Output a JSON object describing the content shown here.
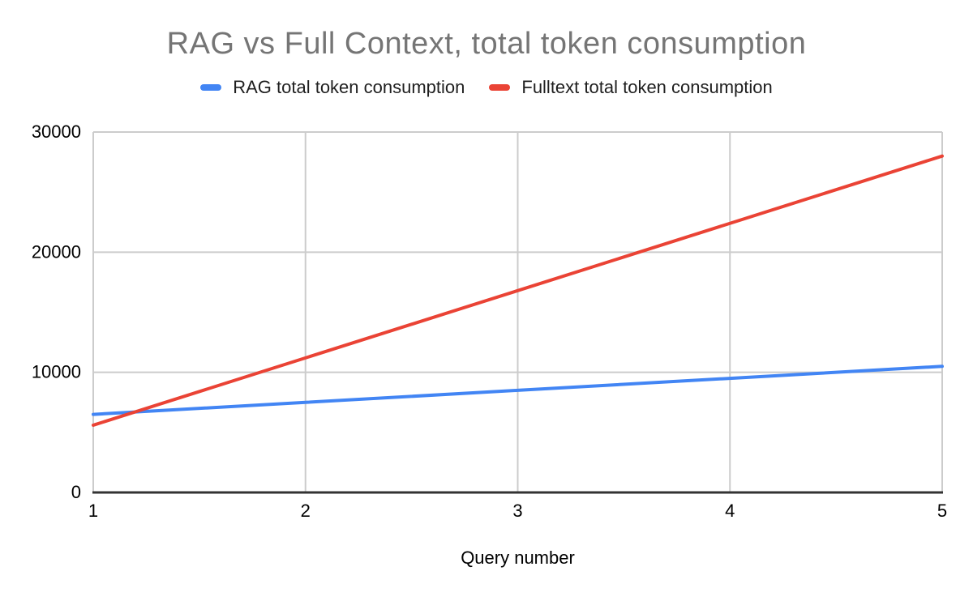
{
  "chart_data": {
    "type": "line",
    "title": "RAG vs Full Context, total token consumption",
    "xlabel": "Query number",
    "ylabel": "",
    "x": [
      1,
      2,
      3,
      4,
      5
    ],
    "x_tick_labels": [
      "1",
      "2",
      "3",
      "4",
      "5"
    ],
    "yticks": [
      0,
      10000,
      20000,
      30000
    ],
    "ylim": [
      0,
      30000
    ],
    "grid": true,
    "legend_position": "top",
    "series": [
      {
        "name": "RAG total token consumption",
        "color": "#4285F4",
        "values": [
          6500,
          7500,
          8500,
          9500,
          10500
        ]
      },
      {
        "name": "Fulltext total token consumption",
        "color": "#EA4335",
        "values": [
          5600,
          11200,
          16800,
          22400,
          28000
        ]
      }
    ]
  },
  "styles": {
    "title_color": "#757575",
    "text_color": "#000000",
    "legend_text_color": "#1f1f1f",
    "grid_color": "#cccccc",
    "axis_color": "#333333",
    "background": "#ffffff"
  }
}
